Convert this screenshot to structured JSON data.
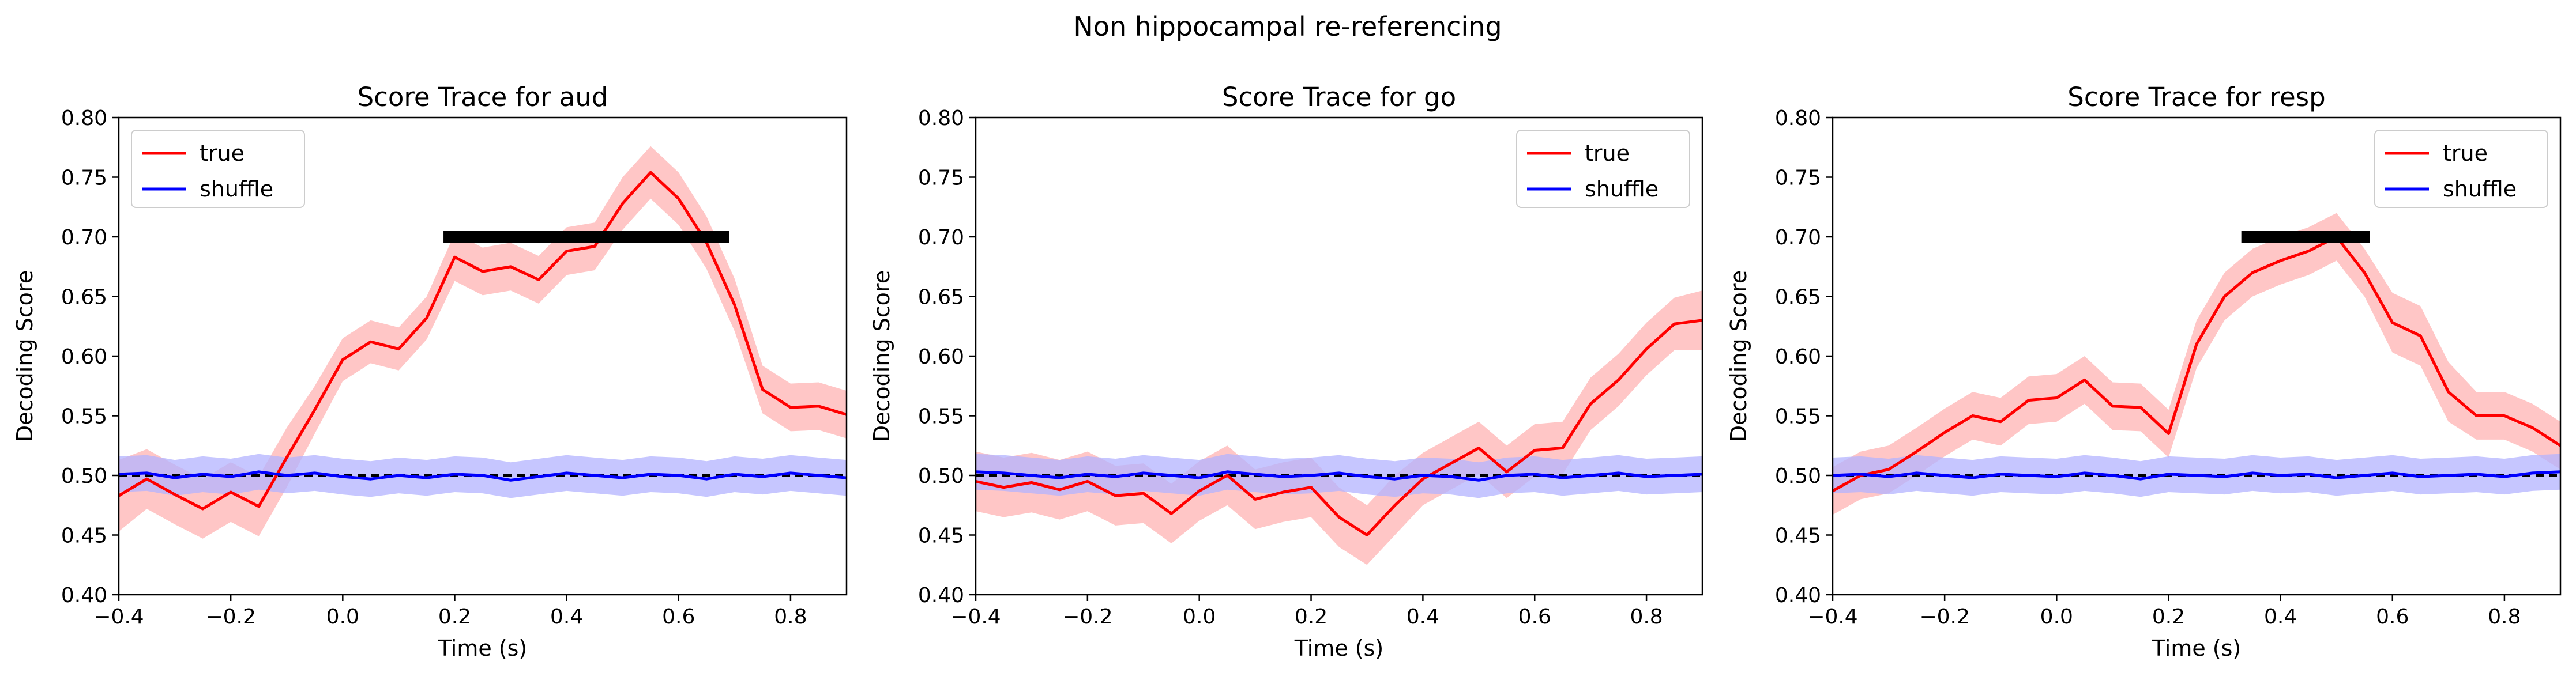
{
  "suptitle": "Non hippocampal re-referencing",
  "chart_data": [
    {
      "type": "line",
      "title": "Score Trace for aud",
      "xlabel": "Time (s)",
      "ylabel": "Decoding Score",
      "xlim": [
        -0.4,
        0.9
      ],
      "ylim": [
        0.4,
        0.8
      ],
      "xticks": [
        "−0.4",
        "−0.2",
        "0.0",
        "0.2",
        "0.4",
        "0.6",
        "0.8"
      ],
      "yticks": [
        "0.40",
        "0.45",
        "0.50",
        "0.55",
        "0.60",
        "0.65",
        "0.70",
        "0.75",
        "0.80"
      ],
      "legend": "top-left",
      "chance_level": 0.5,
      "significance_bar": {
        "start": 0.18,
        "end": 0.69,
        "y": 0.7
      },
      "series": [
        {
          "name": "true",
          "color": "#ff0000",
          "band_color": "#ffb3b3",
          "x": [
            -0.4,
            -0.35,
            -0.3,
            -0.25,
            -0.2,
            -0.15,
            -0.1,
            -0.05,
            0.0,
            0.05,
            0.1,
            0.15,
            0.2,
            0.25,
            0.3,
            0.35,
            0.4,
            0.45,
            0.5,
            0.55,
            0.6,
            0.65,
            0.7,
            0.75,
            0.8,
            0.85,
            0.9
          ],
          "y": [
            0.483,
            0.497,
            0.484,
            0.472,
            0.486,
            0.474,
            0.515,
            0.555,
            0.597,
            0.612,
            0.606,
            0.632,
            0.683,
            0.671,
            0.675,
            0.664,
            0.688,
            0.692,
            0.728,
            0.754,
            0.732,
            0.695,
            0.643,
            0.572,
            0.557,
            0.558,
            0.551
          ],
          "err": [
            0.03,
            0.025,
            0.025,
            0.025,
            0.025,
            0.025,
            0.025,
            0.02,
            0.018,
            0.018,
            0.018,
            0.018,
            0.02,
            0.02,
            0.02,
            0.02,
            0.02,
            0.02,
            0.022,
            0.022,
            0.022,
            0.022,
            0.022,
            0.02,
            0.02,
            0.02,
            0.02
          ]
        },
        {
          "name": "shuffle",
          "color": "#0000ff",
          "band_color": "#b3b3ff",
          "x": [
            -0.4,
            -0.35,
            -0.3,
            -0.25,
            -0.2,
            -0.15,
            -0.1,
            -0.05,
            0.0,
            0.05,
            0.1,
            0.15,
            0.2,
            0.25,
            0.3,
            0.35,
            0.4,
            0.45,
            0.5,
            0.55,
            0.6,
            0.65,
            0.7,
            0.75,
            0.8,
            0.85,
            0.9
          ],
          "y": [
            0.501,
            0.502,
            0.498,
            0.501,
            0.499,
            0.503,
            0.5,
            0.502,
            0.499,
            0.497,
            0.5,
            0.498,
            0.501,
            0.5,
            0.496,
            0.499,
            0.502,
            0.5,
            0.498,
            0.501,
            0.5,
            0.497,
            0.501,
            0.499,
            0.502,
            0.5,
            0.498
          ],
          "err": [
            0.015,
            0.015,
            0.015,
            0.015,
            0.015,
            0.015,
            0.015,
            0.015,
            0.015,
            0.015,
            0.015,
            0.015,
            0.015,
            0.015,
            0.015,
            0.015,
            0.015,
            0.015,
            0.015,
            0.015,
            0.015,
            0.015,
            0.015,
            0.015,
            0.015,
            0.015,
            0.015
          ]
        }
      ]
    },
    {
      "type": "line",
      "title": "Score Trace for go",
      "xlabel": "Time (s)",
      "ylabel": "Decoding Score",
      "xlim": [
        -0.4,
        0.9
      ],
      "ylim": [
        0.4,
        0.8
      ],
      "xticks": [
        "−0.4",
        "−0.2",
        "0.0",
        "0.2",
        "0.4",
        "0.6",
        "0.8"
      ],
      "yticks": [
        "0.40",
        "0.45",
        "0.50",
        "0.55",
        "0.60",
        "0.65",
        "0.70",
        "0.75",
        "0.80"
      ],
      "legend": "top-right",
      "chance_level": 0.5,
      "significance_bar": null,
      "series": [
        {
          "name": "true",
          "color": "#ff0000",
          "band_color": "#ffb3b3",
          "x": [
            -0.4,
            -0.35,
            -0.3,
            -0.25,
            -0.2,
            -0.15,
            -0.1,
            -0.05,
            0.0,
            0.05,
            0.1,
            0.15,
            0.2,
            0.25,
            0.3,
            0.35,
            0.4,
            0.45,
            0.5,
            0.55,
            0.6,
            0.65,
            0.7,
            0.75,
            0.8,
            0.85,
            0.9
          ],
          "y": [
            0.495,
            0.49,
            0.494,
            0.488,
            0.495,
            0.483,
            0.485,
            0.468,
            0.487,
            0.5,
            0.48,
            0.486,
            0.49,
            0.465,
            0.45,
            0.475,
            0.497,
            0.51,
            0.523,
            0.503,
            0.521,
            0.523,
            0.56,
            0.58,
            0.606,
            0.627,
            0.63
          ],
          "err": [
            0.025,
            0.025,
            0.025,
            0.025,
            0.025,
            0.025,
            0.025,
            0.025,
            0.025,
            0.025,
            0.025,
            0.025,
            0.025,
            0.025,
            0.025,
            0.025,
            0.022,
            0.022,
            0.022,
            0.022,
            0.022,
            0.022,
            0.022,
            0.022,
            0.022,
            0.022,
            0.025
          ]
        },
        {
          "name": "shuffle",
          "color": "#0000ff",
          "band_color": "#b3b3ff",
          "x": [
            -0.4,
            -0.35,
            -0.3,
            -0.25,
            -0.2,
            -0.15,
            -0.1,
            -0.05,
            0.0,
            0.05,
            0.1,
            0.15,
            0.2,
            0.25,
            0.3,
            0.35,
            0.4,
            0.45,
            0.5,
            0.55,
            0.6,
            0.65,
            0.7,
            0.75,
            0.8,
            0.85,
            0.9
          ],
          "y": [
            0.503,
            0.502,
            0.5,
            0.498,
            0.501,
            0.499,
            0.502,
            0.5,
            0.498,
            0.503,
            0.501,
            0.499,
            0.5,
            0.502,
            0.499,
            0.497,
            0.5,
            0.499,
            0.496,
            0.5,
            0.501,
            0.498,
            0.5,
            0.502,
            0.499,
            0.5,
            0.501
          ],
          "err": [
            0.015,
            0.015,
            0.015,
            0.015,
            0.015,
            0.015,
            0.015,
            0.015,
            0.015,
            0.015,
            0.015,
            0.015,
            0.015,
            0.015,
            0.015,
            0.015,
            0.015,
            0.015,
            0.015,
            0.015,
            0.015,
            0.015,
            0.015,
            0.015,
            0.015,
            0.015,
            0.015
          ]
        }
      ]
    },
    {
      "type": "line",
      "title": "Score Trace for resp",
      "xlabel": "Time (s)",
      "ylabel": "Decoding Score",
      "xlim": [
        -0.4,
        0.9
      ],
      "ylim": [
        0.4,
        0.8
      ],
      "xticks": [
        "−0.4",
        "−0.2",
        "0.0",
        "0.2",
        "0.4",
        "0.6",
        "0.8"
      ],
      "yticks": [
        "0.40",
        "0.45",
        "0.50",
        "0.55",
        "0.60",
        "0.65",
        "0.70",
        "0.75",
        "0.80"
      ],
      "legend": "top-right",
      "chance_level": 0.5,
      "significance_bar": {
        "start": 0.33,
        "end": 0.56,
        "y": 0.7
      },
      "series": [
        {
          "name": "true",
          "color": "#ff0000",
          "band_color": "#ffb3b3",
          "x": [
            -0.4,
            -0.35,
            -0.3,
            -0.25,
            -0.2,
            -0.15,
            -0.1,
            -0.05,
            0.0,
            0.05,
            0.1,
            0.15,
            0.2,
            0.25,
            0.3,
            0.35,
            0.4,
            0.45,
            0.5,
            0.55,
            0.6,
            0.65,
            0.7,
            0.75,
            0.8,
            0.85,
            0.9
          ],
          "y": [
            0.487,
            0.5,
            0.505,
            0.52,
            0.536,
            0.55,
            0.545,
            0.563,
            0.565,
            0.58,
            0.558,
            0.557,
            0.535,
            0.61,
            0.65,
            0.67,
            0.68,
            0.688,
            0.7,
            0.67,
            0.628,
            0.617,
            0.57,
            0.55,
            0.55,
            0.54,
            0.525
          ],
          "err": [
            0.02,
            0.02,
            0.02,
            0.02,
            0.02,
            0.02,
            0.02,
            0.02,
            0.02,
            0.02,
            0.02,
            0.02,
            0.02,
            0.02,
            0.02,
            0.02,
            0.02,
            0.02,
            0.02,
            0.02,
            0.025,
            0.025,
            0.025,
            0.02,
            0.02,
            0.02,
            0.02
          ]
        },
        {
          "name": "shuffle",
          "color": "#0000ff",
          "band_color": "#b3b3ff",
          "x": [
            -0.4,
            -0.35,
            -0.3,
            -0.25,
            -0.2,
            -0.15,
            -0.1,
            -0.05,
            0.0,
            0.05,
            0.1,
            0.15,
            0.2,
            0.25,
            0.3,
            0.35,
            0.4,
            0.45,
            0.5,
            0.55,
            0.6,
            0.65,
            0.7,
            0.75,
            0.8,
            0.85,
            0.9
          ],
          "y": [
            0.5,
            0.501,
            0.499,
            0.502,
            0.5,
            0.498,
            0.501,
            0.5,
            0.499,
            0.502,
            0.5,
            0.497,
            0.501,
            0.5,
            0.499,
            0.502,
            0.5,
            0.501,
            0.498,
            0.5,
            0.502,
            0.499,
            0.5,
            0.501,
            0.499,
            0.502,
            0.503
          ],
          "err": [
            0.015,
            0.015,
            0.015,
            0.015,
            0.015,
            0.015,
            0.015,
            0.015,
            0.015,
            0.015,
            0.015,
            0.015,
            0.015,
            0.015,
            0.015,
            0.015,
            0.015,
            0.015,
            0.015,
            0.015,
            0.015,
            0.015,
            0.015,
            0.015,
            0.015,
            0.015,
            0.015
          ]
        }
      ]
    }
  ]
}
